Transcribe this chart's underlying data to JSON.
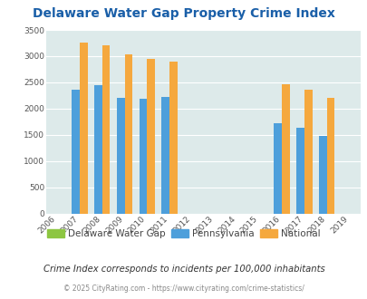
{
  "title": "Delaware Water Gap Property Crime Index",
  "years": [
    2006,
    2007,
    2008,
    2009,
    2010,
    2011,
    2012,
    2013,
    2014,
    2015,
    2016,
    2017,
    2018,
    2019
  ],
  "pennsylvania": {
    "2007": 2370,
    "2008": 2440,
    "2009": 2210,
    "2010": 2185,
    "2011": 2230,
    "2016": 1720,
    "2017": 1630,
    "2018": 1490
  },
  "national": {
    "2007": 3265,
    "2008": 3205,
    "2009": 3040,
    "2010": 2950,
    "2011": 2905,
    "2016": 2470,
    "2017": 2370,
    "2018": 2210
  },
  "data_years": [
    2007,
    2008,
    2009,
    2010,
    2011,
    2016,
    2017,
    2018
  ],
  "color_delaware": "#8dc641",
  "color_pennsylvania": "#4d9fdb",
  "color_national": "#f5a83e",
  "ylim": [
    0,
    3500
  ],
  "yticks": [
    0,
    500,
    1000,
    1500,
    2000,
    2500,
    3000,
    3500
  ],
  "bg_color": "#ddeaea",
  "grid_color": "#ffffff",
  "title_color": "#1a5fa8",
  "subtitle": "Crime Index corresponds to incidents per 100,000 inhabitants",
  "footer": "© 2025 CityRating.com - https://www.cityrating.com/crime-statistics/",
  "legend_labels": [
    "Delaware Water Gap",
    "Pennsylvania",
    "National"
  ],
  "bar_width": 0.35
}
